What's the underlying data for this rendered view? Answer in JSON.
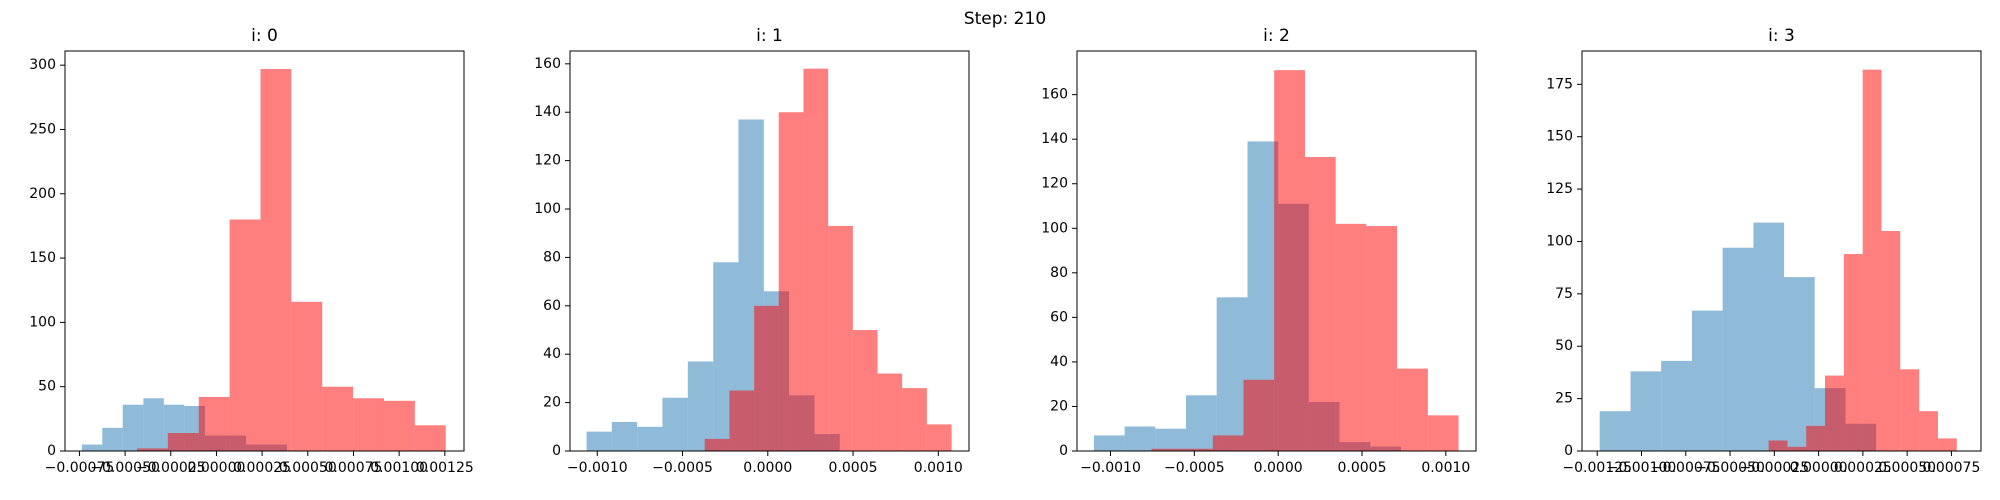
{
  "title": "Step: 210",
  "chart_data": [
    {
      "type": "histogram",
      "title": "i: 0",
      "xlim": [
        -0.000829,
        0.001355
      ],
      "ylim": [
        0,
        311
      ],
      "xticks": [
        {
          "value": -0.00075,
          "label": "−0.00075"
        },
        {
          "value": -0.0005,
          "label": "−0.00050"
        },
        {
          "value": -0.00025,
          "label": "−0.00025"
        },
        {
          "value": 0,
          "label": "0.00000"
        },
        {
          "value": 0.00025,
          "label": "0.00025"
        },
        {
          "value": 0.0005,
          "label": "0.00050"
        },
        {
          "value": 0.00075,
          "label": "0.00075"
        },
        {
          "value": 0.001,
          "label": "0.00100"
        },
        {
          "value": 0.00125,
          "label": "0.00125"
        }
      ],
      "yticks": [
        0,
        50,
        100,
        150,
        200,
        250,
        300
      ],
      "series": [
        {
          "color": "#1f77b4",
          "alpha": 0.5,
          "bins": [
            -0.000737,
            -0.000625,
            -0.000513,
            -0.0004,
            -0.000288,
            -0.000176,
            -6.3e-05,
            4.9e-05,
            0.000162,
            0.000274,
            0.000386
          ],
          "values": [
            5,
            18,
            36,
            41,
            36,
            35,
            12,
            12,
            5,
            5
          ]
        },
        {
          "color": "#ff0000",
          "alpha": 0.5,
          "bins": [
            -0.000435,
            -0.000266,
            -9.7e-05,
            7.2e-05,
            0.000241,
            0.00041,
            0.000579,
            0.000748,
            0.000917,
            0.001086,
            0.001255
          ],
          "values": [
            2,
            14,
            42,
            180,
            297,
            116,
            50,
            41,
            39,
            20
          ]
        }
      ]
    },
    {
      "type": "histogram",
      "title": "i: 1",
      "xlim": [
        -0.00116,
        0.00118
      ],
      "ylim": [
        0,
        165.3
      ],
      "xticks": [
        {
          "value": -0.001,
          "label": "−0.0010"
        },
        {
          "value": -0.0005,
          "label": "−0.0005"
        },
        {
          "value": 0,
          "label": "0.0000"
        },
        {
          "value": 0.0005,
          "label": "0.0005"
        },
        {
          "value": 0.001,
          "label": "0.0010"
        }
      ],
      "yticks": [
        0,
        20,
        40,
        60,
        80,
        100,
        120,
        140,
        160
      ],
      "series": [
        {
          "color": "#1f77b4",
          "alpha": 0.5,
          "bins": [
            -0.001063,
            -0.000915,
            -0.000766,
            -0.000618,
            -0.000469,
            -0.00032,
            -0.000172,
            -2.3e-05,
            0.000125,
            0.000274,
            0.000422
          ],
          "values": [
            8,
            12,
            10,
            22,
            37,
            78,
            137,
            66,
            23,
            7
          ]
        },
        {
          "color": "#ff0000",
          "alpha": 0.5,
          "bins": [
            -0.00037,
            -0.000225,
            -8e-05,
            6.4e-05,
            0.000209,
            0.000354,
            0.000499,
            0.000644,
            0.000788,
            0.000933,
            0.001078
          ],
          "values": [
            5,
            25,
            60,
            140,
            158,
            93,
            50,
            32,
            26,
            11
          ]
        }
      ]
    },
    {
      "type": "histogram",
      "title": "i: 2",
      "xlim": [
        -0.0012,
        0.00118
      ],
      "ylim": [
        0,
        179.6
      ],
      "xticks": [
        {
          "value": -0.001,
          "label": "−0.0010"
        },
        {
          "value": -0.0005,
          "label": "−0.0005"
        },
        {
          "value": 0,
          "label": "0.0000"
        },
        {
          "value": 0.0005,
          "label": "0.0005"
        },
        {
          "value": 0.001,
          "label": "0.0010"
        }
      ],
      "yticks": [
        0,
        20,
        40,
        60,
        80,
        100,
        120,
        140,
        160
      ],
      "series": [
        {
          "color": "#1f77b4",
          "alpha": 0.5,
          "bins": [
            -0.001099,
            -0.000916,
            -0.000733,
            -0.00055,
            -0.000367,
            -0.000183,
            0,
            0.000183,
            0.000366,
            0.000549,
            0.000733
          ],
          "values": [
            7,
            11,
            10,
            25,
            69,
            139,
            111,
            22,
            4,
            2
          ]
        },
        {
          "color": "#ff0000",
          "alpha": 0.5,
          "bins": [
            -0.000756,
            -0.000573,
            -0.00039,
            -0.000207,
            -2.4e-05,
            0.00016,
            0.000343,
            0.000526,
            0.000709,
            0.000893,
            0.001076
          ],
          "values": [
            1,
            1,
            7,
            32,
            171,
            132,
            102,
            101,
            37,
            16
          ]
        }
      ]
    },
    {
      "type": "histogram",
      "title": "i: 3",
      "xlim": [
        -0.001336,
        0.000917
      ],
      "ylim": [
        0,
        190.9
      ],
      "xticks": [
        {
          "value": -0.00125,
          "label": "−0.00125"
        },
        {
          "value": -0.001,
          "label": "−0.00100"
        },
        {
          "value": -0.00075,
          "label": "−0.00075"
        },
        {
          "value": -0.0005,
          "label": "−0.00050"
        },
        {
          "value": -0.00025,
          "label": "−0.00025"
        },
        {
          "value": 0,
          "label": "0.00000"
        },
        {
          "value": 0.00025,
          "label": "0.00025"
        },
        {
          "value": 0.0005,
          "label": "0.00050"
        },
        {
          "value": 0.00075,
          "label": "0.00075"
        }
      ],
      "yticks": [
        0,
        25,
        50,
        75,
        100,
        125,
        150,
        175
      ],
      "series": [
        {
          "color": "#1f77b4",
          "alpha": 0.5,
          "bins": [
            -0.001236,
            -0.001062,
            -0.000889,
            -0.000715,
            -0.000542,
            -0.000368,
            -0.000195,
            -2.2e-05,
            0.000152,
            0.000325
          ],
          "values": [
            19,
            38,
            43,
            67,
            97,
            109,
            83,
            30,
            13
          ]
        },
        {
          "color": "#ff0000",
          "alpha": 0.5,
          "bins": [
            -0.000282,
            -0.000176,
            -7e-05,
            3.6e-05,
            0.000143,
            0.000249,
            0.000355,
            0.000461,
            0.000568,
            0.000674,
            0.00078
          ],
          "values": [
            5,
            2,
            12,
            36,
            94,
            182,
            105,
            39,
            19,
            6
          ]
        }
      ]
    }
  ]
}
